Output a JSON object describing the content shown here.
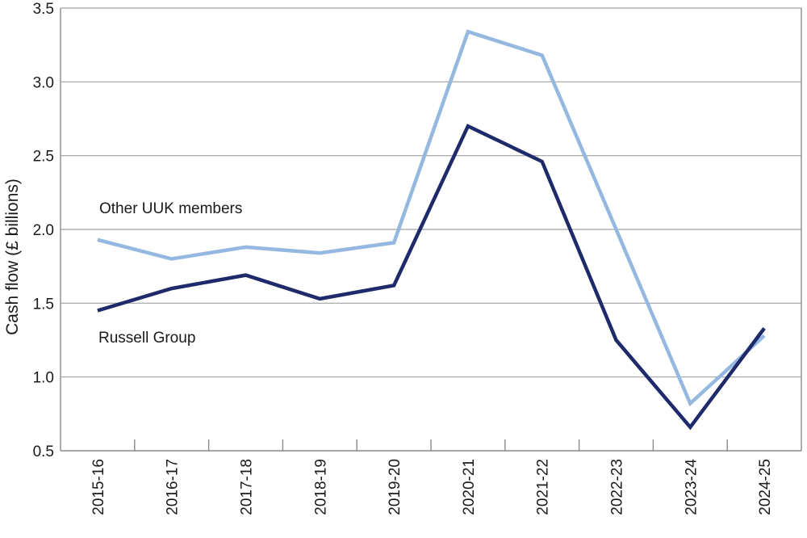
{
  "chart_data": {
    "type": "line",
    "ylabel": "Cash flow (£ billions)",
    "xlabel": "",
    "ylim": [
      0.5,
      3.5
    ],
    "yticks": [
      "0.5",
      "1.0",
      "1.5",
      "2.0",
      "2.5",
      "3.0",
      "3.5"
    ],
    "grid": "horizontal",
    "categories": [
      "2015-16",
      "2016-17",
      "2017-18",
      "2018-19",
      "2019-20",
      "2020-21",
      "2021-22",
      "2022-23",
      "2023-24",
      "2024-25"
    ],
    "series": [
      {
        "name": "Other UUK members",
        "color": "#94b8e0",
        "values": [
          1.93,
          1.8,
          1.88,
          1.84,
          1.91,
          3.34,
          3.18,
          2.0,
          0.82,
          1.28
        ]
      },
      {
        "name": "Russell Group",
        "color": "#1f2a6b",
        "values": [
          1.45,
          1.6,
          1.69,
          1.53,
          1.62,
          2.7,
          2.46,
          1.25,
          0.66,
          1.33
        ]
      }
    ]
  }
}
